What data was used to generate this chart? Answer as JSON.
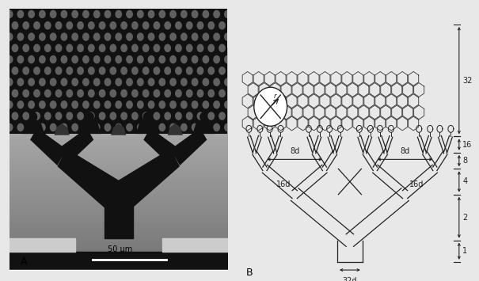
{
  "fig_bg": "#e8e8e8",
  "panel_a": {
    "label": "A",
    "scale_bar_text": "50 μm"
  },
  "panel_b": {
    "label": "B",
    "dim_labels": [
      "32",
      "16",
      "8",
      "4",
      "2",
      "1"
    ],
    "horiz_labels": [
      "8d",
      "8d",
      "16d",
      "16d",
      "32d"
    ]
  }
}
